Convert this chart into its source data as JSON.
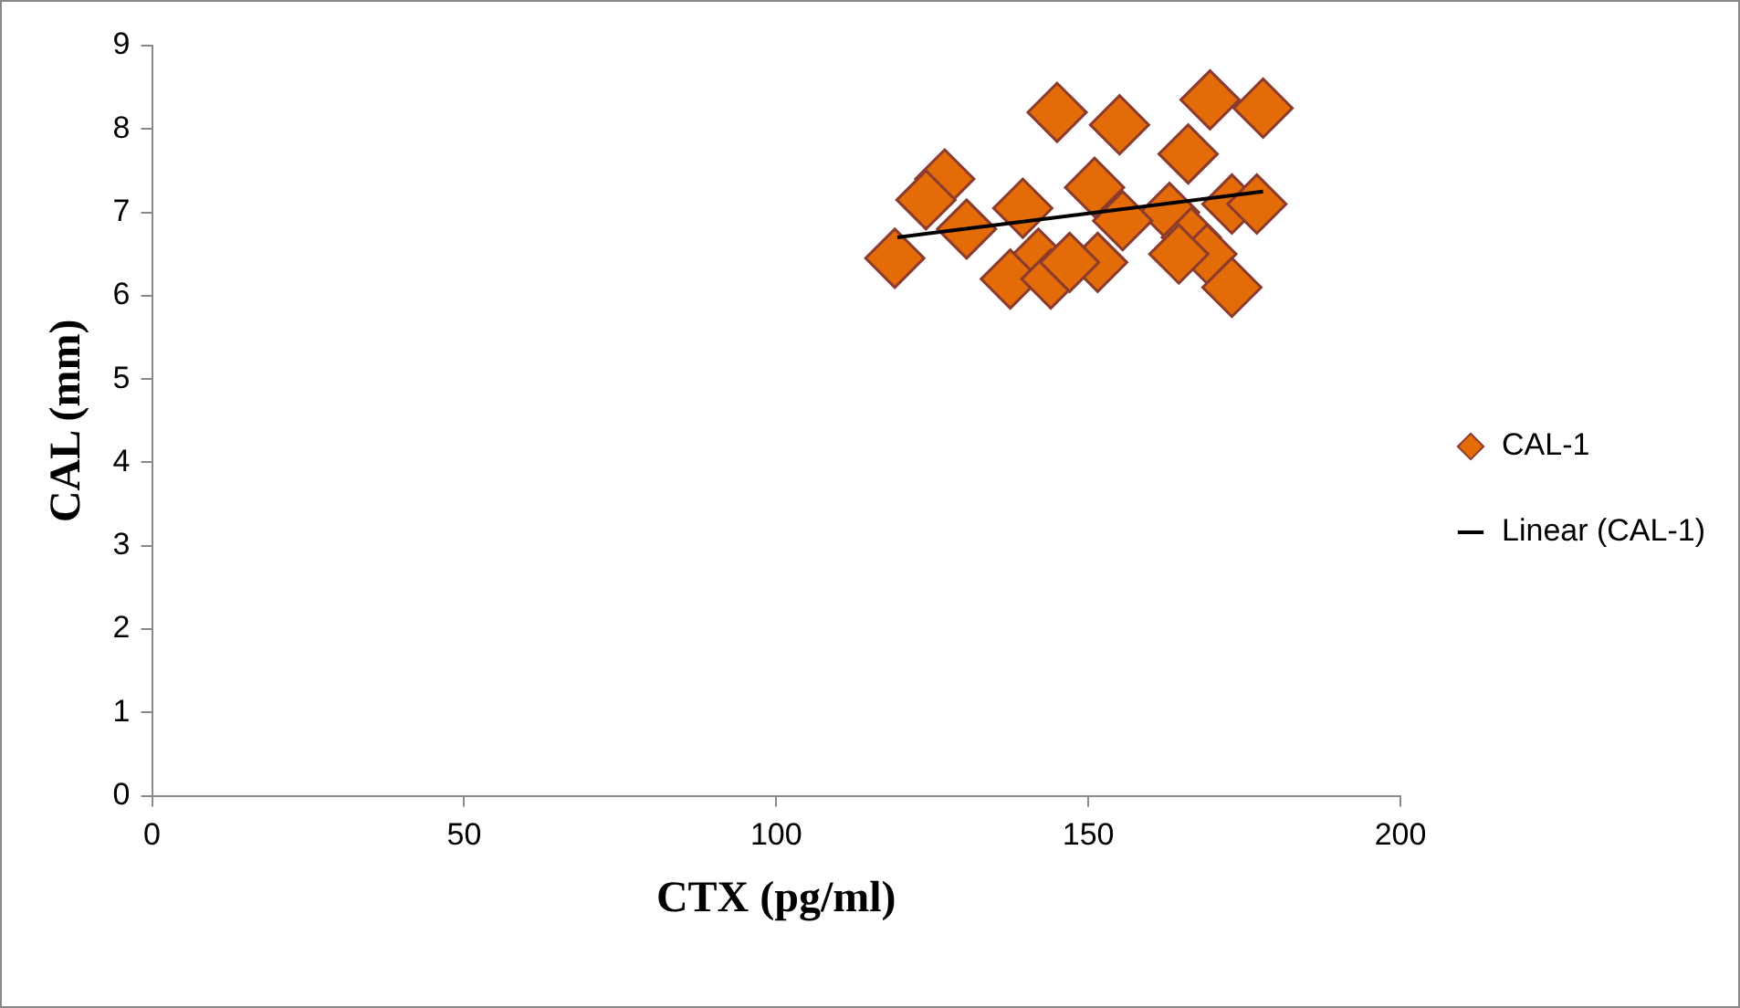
{
  "chart_data": {
    "type": "scatter",
    "xlabel": "CTX (pg/ml)",
    "ylabel": "CAL (mm)",
    "xlim": [
      0,
      200
    ],
    "xticks": [
      0,
      50,
      100,
      150,
      200
    ],
    "ylim": [
      0,
      9
    ],
    "yticks": [
      0,
      1,
      2,
      3,
      4,
      5,
      6,
      7,
      8,
      9
    ],
    "grid": false,
    "legend": "right",
    "marker": "diamond",
    "series": [
      {
        "name": "CAL-1",
        "color": "#e36c09",
        "x": [
          145,
          155,
          169.5,
          178,
          166,
          127,
          124,
          151,
          139.5,
          130.5,
          119,
          173,
          177,
          163,
          155.5,
          166.5,
          169,
          142,
          151.5,
          137.5,
          144,
          147,
          173,
          164.5
        ],
        "values": [
          8.2,
          8.05,
          8.35,
          8.25,
          7.7,
          7.4,
          7.15,
          7.3,
          7.05,
          6.8,
          6.45,
          7.1,
          7.1,
          7.0,
          6.9,
          6.7,
          6.5,
          6.45,
          6.4,
          6.2,
          6.2,
          6.4,
          6.1,
          6.5
        ]
      },
      {
        "name": "Linear (CAL-1)",
        "type": "line",
        "marker": "none",
        "color": "#000000",
        "x": [
          119.4,
          178
        ],
        "values": [
          6.7,
          7.25
        ]
      }
    ]
  }
}
